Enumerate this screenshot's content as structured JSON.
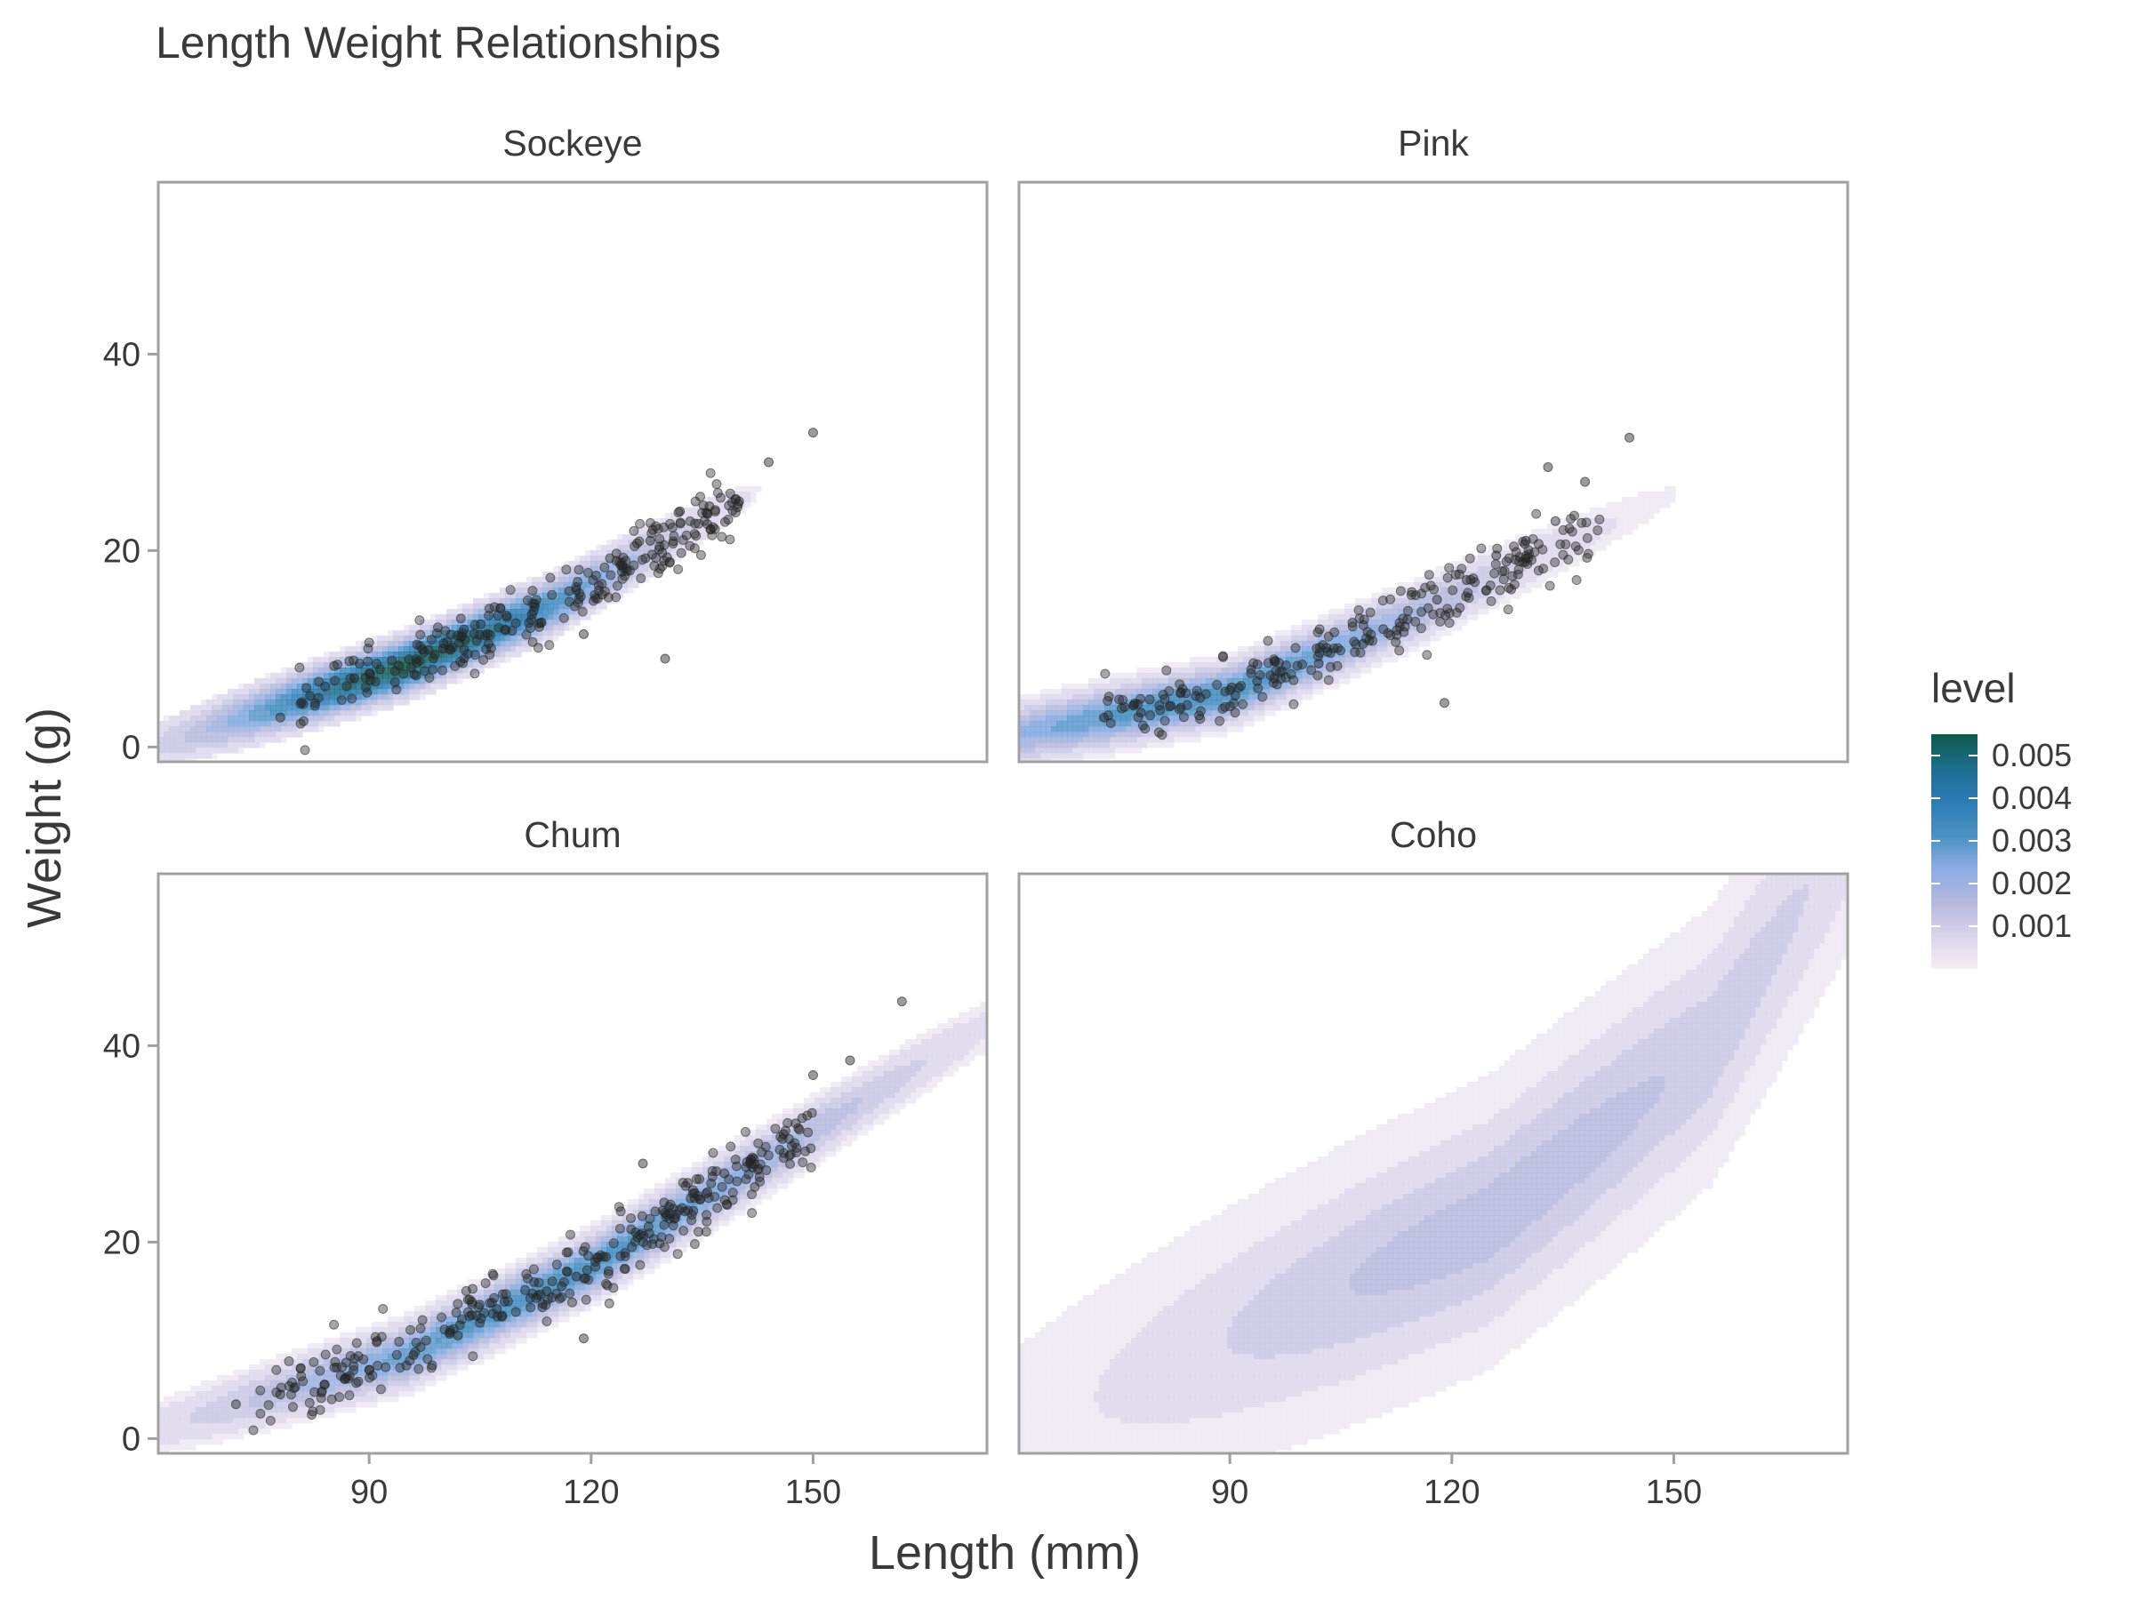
{
  "chart_data": {
    "type": "scatter",
    "subtype": "faceted-density-contour",
    "title": "Length Weight Relationships",
    "xlabel": "Length (mm)",
    "ylabel": "Weight (g)",
    "xlim": [
      61.5,
      173.5
    ],
    "ylim": [
      -1.5,
      57.5
    ],
    "xticks": [
      90,
      120,
      150
    ],
    "yticks": [
      0,
      20,
      40
    ],
    "grid": false,
    "legend": {
      "title": "level",
      "position": "right",
      "range": [
        0,
        0.0055
      ],
      "ticks": [
        "0.001",
        "0.002",
        "0.003",
        "0.004",
        "0.005"
      ],
      "tick_values": [
        0.001,
        0.002,
        0.003,
        0.004,
        0.005
      ],
      "colors": [
        "#f5eef6",
        "#d9d4ea",
        "#b5b8dc",
        "#8bace4",
        "#4a90c2",
        "#2c7bb6",
        "#1d6d8e",
        "#0e5a4a"
      ]
    },
    "facets": [
      {
        "name": "Sockeye",
        "anchor": [
          [
            78,
            3
          ],
          [
            82,
            5.2
          ],
          [
            88,
            7
          ],
          [
            94,
            8.3
          ],
          [
            100,
            10
          ],
          [
            106,
            11.5
          ],
          [
            112,
            13.5
          ],
          [
            118,
            16
          ],
          [
            124,
            18.5
          ],
          [
            128,
            21
          ],
          [
            132,
            24
          ],
          [
            136,
            24.5
          ],
          [
            140,
            25
          ],
          [
            144,
            29
          ],
          [
            150,
            32
          ],
          [
            130,
            9
          ],
          [
            119,
            11.5
          ]
        ],
        "peak": [
          95,
          8.5
        ],
        "peak_density": 0.0055,
        "spread_along": 18,
        "spread_across": 1.7,
        "curve": [
          [
            75,
            3.5
          ],
          [
            95,
            8.3
          ],
          [
            115,
            14.5
          ],
          [
            135,
            23
          ]
        ],
        "n_points": 260,
        "point_x_range": [
          80,
          140
        ]
      },
      {
        "name": "Pink",
        "anchor": [
          [
            73,
            3
          ],
          [
            78,
            3.5
          ],
          [
            82,
            4.2
          ],
          [
            86,
            5
          ],
          [
            90,
            5.8
          ],
          [
            96,
            7
          ],
          [
            102,
            8.5
          ],
          [
            108,
            10.5
          ],
          [
            114,
            13
          ],
          [
            118,
            15
          ],
          [
            122,
            17
          ],
          [
            126,
            19.5
          ],
          [
            130,
            21
          ],
          [
            134,
            23
          ],
          [
            138,
            27
          ],
          [
            144,
            31.5
          ],
          [
            119,
            4.5
          ],
          [
            133,
            28.5
          ]
        ],
        "peak": [
          84,
          4.3
        ],
        "peak_density": 0.0035,
        "spread_along": 25,
        "spread_across": 1.8,
        "curve": [
          [
            68,
            2.3
          ],
          [
            90,
            5.5
          ],
          [
            115,
            13.5
          ],
          [
            145,
            24
          ]
        ],
        "n_points": 240,
        "point_x_range": [
          73,
          140
        ]
      },
      {
        "name": "Chum",
        "anchor": [
          [
            72,
            3.5
          ],
          [
            78,
            4.5
          ],
          [
            84,
            5.5
          ],
          [
            90,
            7
          ],
          [
            96,
            8.5
          ],
          [
            102,
            10.5
          ],
          [
            108,
            12.5
          ],
          [
            114,
            15
          ],
          [
            118,
            16.5
          ],
          [
            122,
            18.5
          ],
          [
            126,
            21
          ],
          [
            130,
            23
          ],
          [
            134,
            25
          ],
          [
            138,
            27
          ],
          [
            142,
            28.5
          ],
          [
            146,
            31
          ],
          [
            150,
            37
          ],
          [
            155,
            38.5
          ],
          [
            162,
            44.5
          ],
          [
            119,
            10.2
          ],
          [
            127,
            28
          ]
        ],
        "peak": [
          112,
          14
        ],
        "peak_density": 0.0035,
        "spread_along": 28,
        "spread_across": 1.9,
        "curve": [
          [
            70,
            3
          ],
          [
            95,
            8.5
          ],
          [
            120,
            17.5
          ],
          [
            145,
            29
          ]
        ],
        "n_points": 320,
        "point_x_range": [
          74,
          150
        ]
      },
      {
        "name": "Coho",
        "anchor": [],
        "peak": [
          126,
          22
        ],
        "peak_density": 0.0016,
        "spread_along": 34,
        "spread_across": 6.5,
        "curve": [
          [
            95,
            12
          ],
          [
            125,
            22
          ],
          [
            155,
            40
          ],
          [
            165,
            52
          ]
        ],
        "n_points": 0,
        "point_x_range": [
          0,
          0
        ]
      }
    ]
  }
}
